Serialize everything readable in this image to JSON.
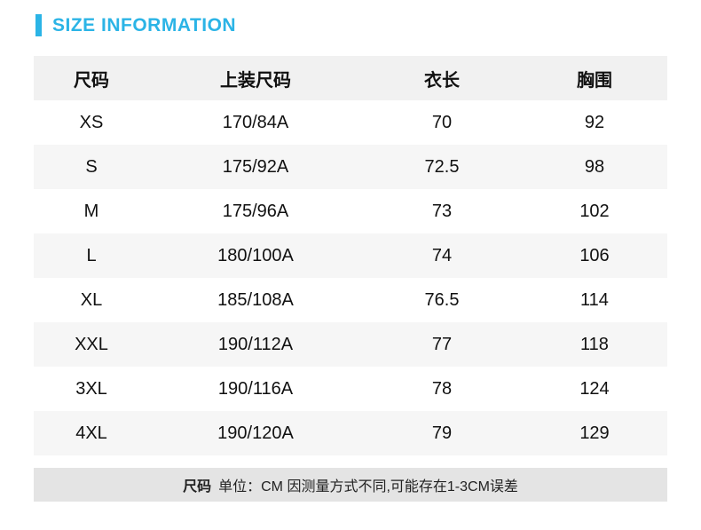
{
  "title": "SIZE INFORMATION",
  "accent_color": "#2bb4e6",
  "table": {
    "headers": [
      "尺码",
      "上装尺码",
      "衣长",
      "胸围"
    ],
    "rows": [
      [
        "XS",
        "170/84A",
        "70",
        "92"
      ],
      [
        "S",
        "175/92A",
        "72.5",
        "98"
      ],
      [
        "M",
        "175/96A",
        "73",
        "102"
      ],
      [
        "L",
        "180/100A",
        "74",
        "106"
      ],
      [
        "XL",
        "185/108A",
        "76.5",
        "114"
      ],
      [
        "XXL",
        "190/112A",
        "77",
        "118"
      ],
      [
        "3XL",
        "190/116A",
        "78",
        "124"
      ],
      [
        "4XL",
        "190/120A",
        "79",
        "129"
      ]
    ]
  },
  "footer": {
    "label": "尺码",
    "note": "单位：CM 因测量方式不同,可能存在1-3CM误差"
  }
}
